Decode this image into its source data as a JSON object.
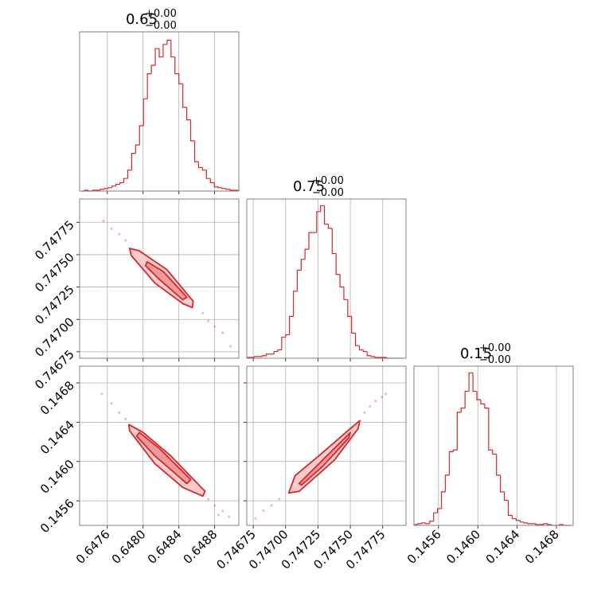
{
  "chart_data": {
    "type": "corner",
    "color": "#d62728",
    "grid": true,
    "contour_fills": [
      "#f6cccc",
      "#ec9a9a"
    ],
    "parameters": [
      {
        "title_value": "0.65",
        "title_plus": "+0.00",
        "title_minus": "−0.00",
        "lim": [
          0.64729,
          0.64907
        ],
        "ticks": [
          0.6476,
          {
            "value": 0.648,
            "label": "0.6480"
          },
          0.6484,
          0.6488
        ],
        "hist_ylim": [
          0,
          190
        ],
        "bins": [
          0.6473,
          0.647344,
          0.647388,
          0.647432,
          0.647476,
          0.64752,
          0.647564,
          0.647608,
          0.647652,
          0.647696,
          0.64774,
          0.647784,
          0.647828,
          0.647872,
          0.647916,
          0.64796,
          0.648004,
          0.648048,
          0.648092,
          0.648136,
          0.64818,
          0.648224,
          0.648268,
          0.648312,
          0.648356,
          0.6484,
          0.648444,
          0.648488,
          0.648532,
          0.648576,
          0.64862,
          0.648664,
          0.648708,
          0.648752,
          0.648796,
          0.64884,
          0.648884,
          0.648928,
          0.648972,
          0.649016,
          0.64906
        ],
        "counts": [
          0,
          1,
          0,
          1,
          1,
          2,
          3,
          4,
          6,
          8,
          10,
          15,
          25,
          45,
          55,
          78,
          110,
          140,
          150,
          170,
          160,
          175,
          180,
          160,
          140,
          128,
          100,
          85,
          60,
          35,
          28,
          25,
          15,
          10,
          5,
          4,
          3,
          2,
          1,
          1
        ]
      },
      {
        "title_value": "0.75",
        "title_plus": "+0.00",
        "title_minus": "−0.00",
        "lim": [
          0.7467,
          0.74793
        ],
        "ticks": [
          0.74675,
          {
            "value": 0.747,
            "label": "0.74700"
          },
          0.74725,
          {
            "value": 0.7475,
            "label": "0.74750"
          },
          0.74775
        ],
        "hist_ylim": [
          0,
          190
        ],
        "bins": [
          0.7467,
          0.74673,
          0.74676,
          0.74679,
          0.74682,
          0.74685,
          0.74688,
          0.74691,
          0.74694,
          0.74697,
          0.747,
          0.74703,
          0.74706,
          0.74709,
          0.74712,
          0.74715,
          0.74718,
          0.74721,
          0.74724,
          0.74727,
          0.7473,
          0.74733,
          0.74736,
          0.74739,
          0.74742,
          0.74745,
          0.74748,
          0.74751,
          0.74754,
          0.74757,
          0.7476,
          0.74763,
          0.74766,
          0.74769,
          0.74772,
          0.74775,
          0.74778,
          0.74781,
          0.74784,
          0.74787,
          0.7479
        ],
        "counts": [
          1,
          1,
          2,
          2,
          3,
          5,
          5,
          8,
          10,
          25,
          28,
          50,
          80,
          105,
          118,
          130,
          150,
          150,
          175,
          182,
          160,
          155,
          125,
          100,
          85,
          70,
          50,
          30,
          15,
          10,
          8,
          3,
          2,
          1,
          1,
          1,
          0,
          0,
          0,
          0
        ]
      },
      {
        "title_value": "0.15",
        "title_plus": "+0.00",
        "title_minus": "−0.00",
        "lim": [
          0.14535,
          0.14697
        ],
        "ticks": [
          0.1456,
          {
            "value": 0.146,
            "label": "0.1460"
          },
          0.1464,
          0.1468
        ],
        "hist_ylim": [
          0,
          190
        ],
        "bins": [
          0.14535,
          0.14539,
          0.14543,
          0.14547,
          0.14551,
          0.14555,
          0.14559,
          0.14563,
          0.14567,
          0.14571,
          0.14575,
          0.14579,
          0.14583,
          0.14587,
          0.14591,
          0.14595,
          0.14599,
          0.14603,
          0.14607,
          0.14611,
          0.14615,
          0.14619,
          0.14623,
          0.14627,
          0.14631,
          0.14635,
          0.14639,
          0.14643,
          0.14647,
          0.14651,
          0.14655,
          0.14659,
          0.14663,
          0.14667,
          0.14671,
          0.14675,
          0.14679,
          0.14683,
          0.14687,
          0.14691,
          0.14695
        ],
        "counts": [
          1,
          2,
          3,
          2,
          5,
          15,
          20,
          40,
          60,
          88,
          90,
          135,
          140,
          160,
          182,
          160,
          150,
          145,
          140,
          90,
          85,
          60,
          40,
          30,
          12,
          8,
          6,
          4,
          3,
          2,
          2,
          1,
          1,
          2,
          1,
          0,
          0,
          1,
          0,
          0
        ]
      }
    ],
    "pairs": [
      {
        "x_param": 0,
        "y_param": 1,
        "scatter": {
          "x": [
            0.647556,
            0.647644,
            0.647733,
            0.647804,
            0.648667,
            0.648729,
            0.6488,
            0.648889,
            0.648978
          ],
          "y": [
            0.747762,
            0.747701,
            0.747659,
            0.74761,
            0.747049,
            0.746988,
            0.746945,
            0.746896,
            0.746793
          ]
        },
        "contours": [
          {
            "x": [
              0.647849,
              0.647956,
              0.648267,
              0.64856,
              0.648551,
              0.648444,
              0.648133,
              0.647867
            ],
            "y": [
              0.747549,
              0.74753,
              0.747384,
              0.74714,
              0.747091,
              0.747122,
              0.74728,
              0.747494
            ]
          },
          {
            "x": [
              0.648044,
              0.648222,
              0.648489,
              0.648444,
              0.648178,
              0.648027
            ],
            "y": [
              0.747445,
              0.747372,
              0.747171,
              0.747152,
              0.747311,
              0.747415
            ]
          }
        ]
      },
      {
        "x_param": 0,
        "y_param": 2,
        "scatter": {
          "x": [
            0.647538,
            0.647644,
            0.647733,
            0.647804,
            0.648729,
            0.6488,
            0.648889,
            0.64896,
            0.648844
          ],
          "y": [
            0.146688,
            0.146592,
            0.146496,
            0.146432,
            0.145616,
            0.145552,
            0.145496,
            0.14544,
            0.145456
          ]
        },
        "contours": [
          {
            "x": [
              0.64784,
              0.648,
              0.648311,
              0.648693,
              0.648667,
              0.648444,
              0.648133,
              0.647849
            ],
            "y": [
              0.146376,
              0.146296,
              0.146056,
              0.145696,
              0.145648,
              0.145736,
              0.145976,
              0.146312
            ]
          },
          {
            "x": [
              0.647956,
              0.648178,
              0.648533,
              0.648489,
              0.648133,
              0.647929
            ],
            "y": [
              0.146296,
              0.146136,
              0.145816,
              0.145776,
              0.146056,
              0.146256
            ]
          }
        ]
      },
      {
        "x_param": 1,
        "y_param": 2,
        "scatter": {
          "x": [
            0.746768,
            0.746829,
            0.74689,
            0.746951,
            0.74761,
            0.747652,
            0.747695,
            0.747744,
            0.747774
          ],
          "y": [
            0.14542,
            0.1455,
            0.145552,
            0.145616,
            0.146496,
            0.14656,
            0.146616,
            0.146656,
            0.146688
          ]
        },
        "contours": [
          {
            "x": [
              0.747024,
              0.747073,
              0.747256,
              0.7475,
              0.747573,
              0.747561,
              0.747378,
              0.747104
            ],
            "y": [
              0.14568,
              0.145856,
              0.146056,
              0.146336,
              0.146416,
              0.146336,
              0.146016,
              0.145696
            ]
          },
          {
            "x": [
              0.747104,
              0.747317,
              0.7475,
              0.747488,
              0.747287,
              0.747122
            ],
            "y": [
              0.145776,
              0.146056,
              0.146296,
              0.14624,
              0.145952,
              0.14576
            ]
          }
        ]
      }
    ]
  }
}
